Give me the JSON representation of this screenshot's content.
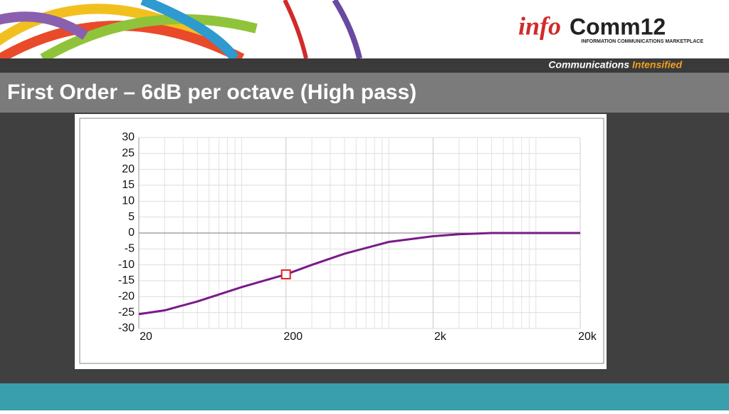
{
  "header": {
    "logo_info": "info",
    "logo_comm": "Comm12",
    "logo_tagline": "INFORMATION COMMUNICATIONS MARKETPLACE",
    "slogan_part1": "Communications",
    "slogan_part2": "Intensified"
  },
  "slide_title": "First Order – 6dB per octave (High pass)",
  "chart_data": {
    "type": "line",
    "x": [
      20,
      30,
      50,
      100,
      200,
      300,
      500,
      1000,
      2000,
      3000,
      5000,
      10000,
      20000
    ],
    "series": [
      {
        "color": "#7a1a8a",
        "values": [
          -25.5,
          -24.3,
          -21.5,
          -17,
          -13,
          -10,
          -6.5,
          -2.8,
          -1,
          -0.4,
          0,
          0,
          0
        ]
      }
    ],
    "marker": {
      "x": 200,
      "y": -13,
      "color": "#e02020"
    },
    "xlim": [
      20,
      20000
    ],
    "xticks": [
      20,
      200,
      {
        "value": 2000,
        "label": "2k"
      },
      {
        "value": 20000,
        "label": "20k"
      }
    ],
    "ylim": [
      -30,
      30
    ],
    "yticks": [
      -30,
      -25,
      -20,
      -15,
      -10,
      -5,
      0,
      5,
      10,
      15,
      20,
      25,
      30
    ],
    "log_x": true,
    "grid": true
  }
}
